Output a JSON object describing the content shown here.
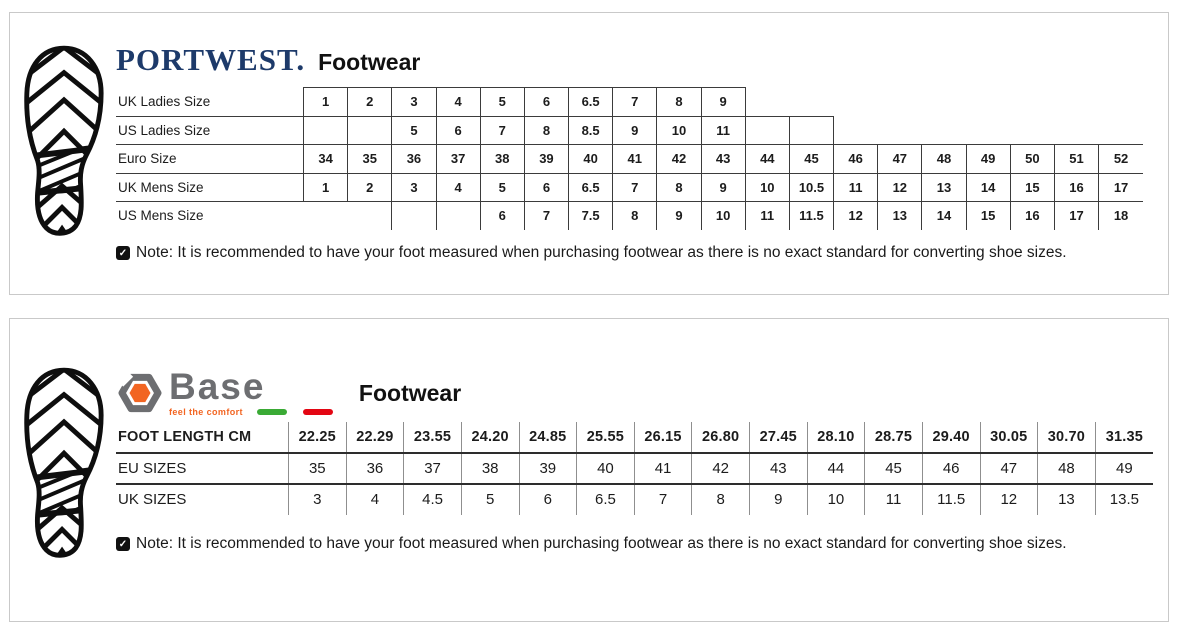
{
  "panels": [
    {
      "brand": "PORTWEST.",
      "title": "Footwear",
      "note_icon": "✓",
      "note": "Note: It is recommended to have your foot measured when purchasing footwear as there is no exact standard for converting shoe sizes.",
      "table": {
        "rows": [
          {
            "label": "UK Ladies Size",
            "values": [
              "1",
              "2",
              "3",
              "4",
              "5",
              "6",
              "6.5",
              "7",
              "8",
              "9",
              null,
              null,
              null,
              null,
              null,
              null,
              null,
              null,
              null
            ]
          },
          {
            "label": "US Ladies Size",
            "values": [
              "",
              "",
              "5",
              "6",
              "7",
              "8",
              "8.5",
              "9",
              "10",
              "11",
              "",
              "",
              null,
              null,
              null,
              null,
              null,
              null,
              null
            ]
          },
          {
            "label": "Euro Size",
            "values": [
              "34",
              "35",
              "36",
              "37",
              "38",
              "39",
              "40",
              "41",
              "42",
              "43",
              "44",
              "45",
              "46",
              "47",
              "48",
              "49",
              "50",
              "51",
              "52"
            ]
          },
          {
            "label": "UK Mens Size",
            "values": [
              "1",
              "2",
              "3",
              "4",
              "5",
              "6",
              "6.5",
              "7",
              "8",
              "9",
              "10",
              "10.5",
              "11",
              "12",
              "13",
              "14",
              "15",
              "16",
              "17"
            ]
          },
          {
            "label": "US Mens Size",
            "values": [
              null,
              null,
              "",
              "",
              "6",
              "7",
              "7.5",
              "8",
              "9",
              "10",
              "11",
              "11.5",
              "12",
              "13",
              "14",
              "15",
              "16",
              "17",
              "18"
            ]
          }
        ]
      }
    },
    {
      "brand": "Base",
      "tagline": "feel the comfort",
      "title": "Footwear",
      "note_icon": "✓",
      "note": "Note: It is recommended to have your foot measured when purchasing footwear as there is no exact standard for converting shoe sizes.",
      "colors": {
        "orange": "#f26522",
        "gray": "#6d6e71",
        "green": "#3aaa35",
        "red": "#e30613"
      },
      "table": {
        "rows": [
          {
            "label": "FOOT LENGTH CM",
            "header": true,
            "values": [
              "22.25",
              "22.29",
              "23.55",
              "24.20",
              "24.85",
              "25.55",
              "26.15",
              "26.80",
              "27.45",
              "28.10",
              "28.75",
              "29.40",
              "30.05",
              "30.70",
              "31.35"
            ]
          },
          {
            "label": "EU SIZES",
            "values": [
              "35",
              "36",
              "37",
              "38",
              "39",
              "40",
              "41",
              "42",
              "43",
              "44",
              "45",
              "46",
              "47",
              "48",
              "49"
            ]
          },
          {
            "label": "UK SIZES",
            "values": [
              "3",
              "4",
              "4.5",
              "5",
              "6",
              "6.5",
              "7",
              "8",
              "9",
              "10",
              "11",
              "11.5",
              "12",
              "13",
              "13.5"
            ]
          }
        ]
      }
    }
  ],
  "colors": {
    "portwest_navy": "#1d3a6a",
    "panel_border": "#c9c9c9"
  }
}
